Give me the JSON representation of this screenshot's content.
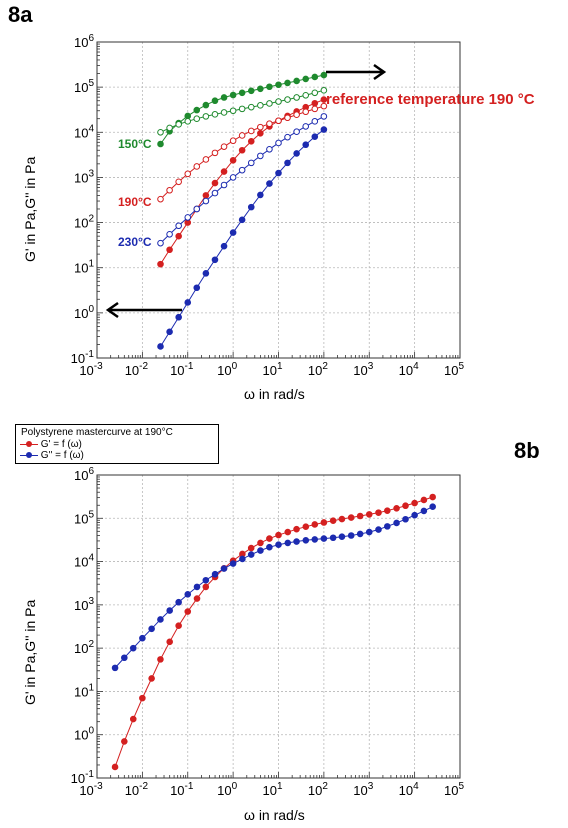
{
  "chart_data": [
    {
      "panel": "8a",
      "type": "scatter",
      "xlabel": "ω in rad/s",
      "ylabel": "G' in Pa,G'' in Pa",
      "xscale": "log",
      "yscale": "log",
      "xlim": [
        0.001,
        100000
      ],
      "ylim": [
        0.1,
        1000000
      ],
      "x_ticks": [
        "10-3",
        "10-2",
        "10-1",
        "100",
        "101",
        "102",
        "103",
        "104",
        "105"
      ],
      "y_ticks": [
        "10-1",
        "100",
        "101",
        "102",
        "103",
        "104",
        "105",
        "106"
      ],
      "grid": true,
      "annotations": [
        "reference temperature 190 °C",
        "150°C",
        "190°C",
        "230°C"
      ],
      "series": [
        {
          "label": "150°C",
          "color": "#1f8a2e",
          "marker": "filled",
          "x": [
            0.0251,
            0.0398,
            0.0631,
            0.1,
            0.158,
            0.251,
            0.398,
            0.631,
            1,
            1.58,
            2.51,
            3.98,
            6.31,
            10,
            15.8,
            25.1,
            39.8,
            63.1,
            100
          ],
          "y": [
            5500,
            10500,
            16000,
            23000,
            31000,
            40000,
            50000,
            59000,
            67000,
            75000,
            83000,
            92000,
            102000,
            113000,
            124000,
            137000,
            152000,
            168000,
            185000
          ]
        },
        {
          "label": "150°C",
          "color": "#1f8a2e",
          "marker": "open",
          "x": [
            0.0251,
            0.0398,
            0.0631,
            0.1,
            0.158,
            0.251,
            0.398,
            0.631,
            1,
            1.58,
            2.51,
            3.98,
            6.31,
            10,
            15.8,
            25.1,
            39.8,
            63.1,
            100
          ],
          "y": [
            10000,
            12500,
            15000,
            17500,
            20000,
            22500,
            25000,
            27500,
            30000,
            33000,
            36000,
            39500,
            43500,
            48000,
            53000,
            59000,
            66000,
            75000,
            85000
          ]
        },
        {
          "label": "190°C",
          "color": "#d42020",
          "marker": "filled",
          "x": [
            0.0251,
            0.0398,
            0.0631,
            0.1,
            0.158,
            0.251,
            0.398,
            0.631,
            1,
            1.58,
            2.51,
            3.98,
            6.31,
            10,
            15.8,
            25.1,
            39.8,
            63.1,
            100
          ],
          "y": [
            12,
            25,
            50,
            100,
            200,
            400,
            750,
            1350,
            2400,
            4000,
            6300,
            9500,
            13500,
            18000,
            23000,
            29000,
            36000,
            44000,
            53000
          ]
        },
        {
          "label": "190°C",
          "color": "#d42020",
          "marker": "open",
          "x": [
            0.0251,
            0.0398,
            0.0631,
            0.1,
            0.158,
            0.251,
            0.398,
            0.631,
            1,
            1.58,
            2.51,
            3.98,
            6.31,
            10,
            15.8,
            25.1,
            39.8,
            63.1,
            100
          ],
          "y": [
            330,
            520,
            800,
            1200,
            1750,
            2500,
            3500,
            4800,
            6500,
            8500,
            10700,
            13000,
            15500,
            18000,
            21000,
            24500,
            28500,
            33000,
            38000
          ]
        },
        {
          "label": "230°C",
          "color": "#1c2bb0",
          "marker": "filled",
          "x": [
            0.0251,
            0.0398,
            0.0631,
            0.1,
            0.158,
            0.251,
            0.398,
            0.631,
            1,
            1.58,
            2.51,
            3.98,
            6.31,
            10,
            15.8,
            25.1,
            39.8,
            63.1,
            100
          ],
          "y": [
            0.18,
            0.38,
            0.8,
            1.7,
            3.6,
            7.5,
            15,
            30,
            60,
            115,
            220,
            410,
            730,
            1250,
            2100,
            3400,
            5300,
            8000,
            11500
          ]
        },
        {
          "label": "230°C",
          "color": "#1c2bb0",
          "marker": "open",
          "x": [
            0.0251,
            0.0398,
            0.0631,
            0.1,
            0.158,
            0.251,
            0.398,
            0.631,
            1,
            1.58,
            2.51,
            3.98,
            6.31,
            10,
            15.8,
            25.1,
            39.8,
            63.1,
            100
          ],
          "y": [
            35,
            55,
            85,
            130,
            200,
            300,
            450,
            680,
            1000,
            1450,
            2100,
            3000,
            4200,
            5800,
            7800,
            10300,
            13500,
            17500,
            22500
          ]
        }
      ]
    },
    {
      "panel": "8b",
      "type": "scatter",
      "xlabel": "ω in rad/s",
      "ylabel": "G' in Pa,G'' in Pa",
      "xscale": "log",
      "yscale": "log",
      "xlim": [
        0.001,
        100000
      ],
      "ylim": [
        0.1,
        1000000
      ],
      "x_ticks": [
        "10-3",
        "10-2",
        "10-1",
        "100",
        "101",
        "102",
        "103",
        "104",
        "105"
      ],
      "y_ticks": [
        "10-1",
        "100",
        "101",
        "102",
        "103",
        "104",
        "105",
        "106"
      ],
      "grid": true,
      "legend": {
        "title": "Polystyrene mastercurve at 190°C",
        "entries": [
          "G' = f (ω)",
          "G'' = f (ω)"
        ],
        "placement": "top-left"
      },
      "series": [
        {
          "name": "G' = f (ω)",
          "color": "#d42020",
          "x": [
            0.0025,
            0.004,
            0.0063,
            0.01,
            0.016,
            0.025,
            0.04,
            0.063,
            0.1,
            0.16,
            0.25,
            0.4,
            0.63,
            1,
            1.6,
            2.5,
            4,
            6.3,
            10,
            16,
            25,
            40,
            63,
            100,
            160,
            250,
            400,
            630,
            1000,
            1600,
            2500,
            4000,
            6300,
            10000,
            16000,
            25000
          ],
          "y": [
            0.18,
            0.7,
            2.3,
            7,
            20,
            55,
            140,
            330,
            700,
            1400,
            2600,
            4400,
            7000,
            10500,
            15000,
            20500,
            27000,
            34000,
            41000,
            48000,
            56000,
            64000,
            72000,
            80000,
            88000,
            96000,
            104000,
            113000,
            123000,
            135000,
            150000,
            170000,
            195000,
            225000,
            265000,
            310000
          ]
        },
        {
          "name": "G'' = f (ω)",
          "color": "#1c2bb0",
          "x": [
            0.0025,
            0.004,
            0.0063,
            0.01,
            0.016,
            0.025,
            0.04,
            0.063,
            0.1,
            0.16,
            0.25,
            0.4,
            0.63,
            1,
            1.6,
            2.5,
            4,
            6.3,
            10,
            16,
            25,
            40,
            63,
            100,
            160,
            250,
            400,
            630,
            1000,
            1600,
            2500,
            4000,
            6300,
            10000,
            16000,
            25000
          ],
          "y": [
            35,
            60,
            100,
            170,
            280,
            460,
            740,
            1150,
            1750,
            2600,
            3700,
            5100,
            6900,
            9000,
            11500,
            14500,
            18000,
            21500,
            24500,
            27000,
            29000,
            31000,
            32500,
            34000,
            35500,
            37500,
            40000,
            43500,
            48000,
            55000,
            65000,
            78000,
            95000,
            118000,
            148000,
            185000
          ]
        }
      ]
    }
  ],
  "panel_labels": {
    "a": "8a",
    "b": "8b"
  }
}
